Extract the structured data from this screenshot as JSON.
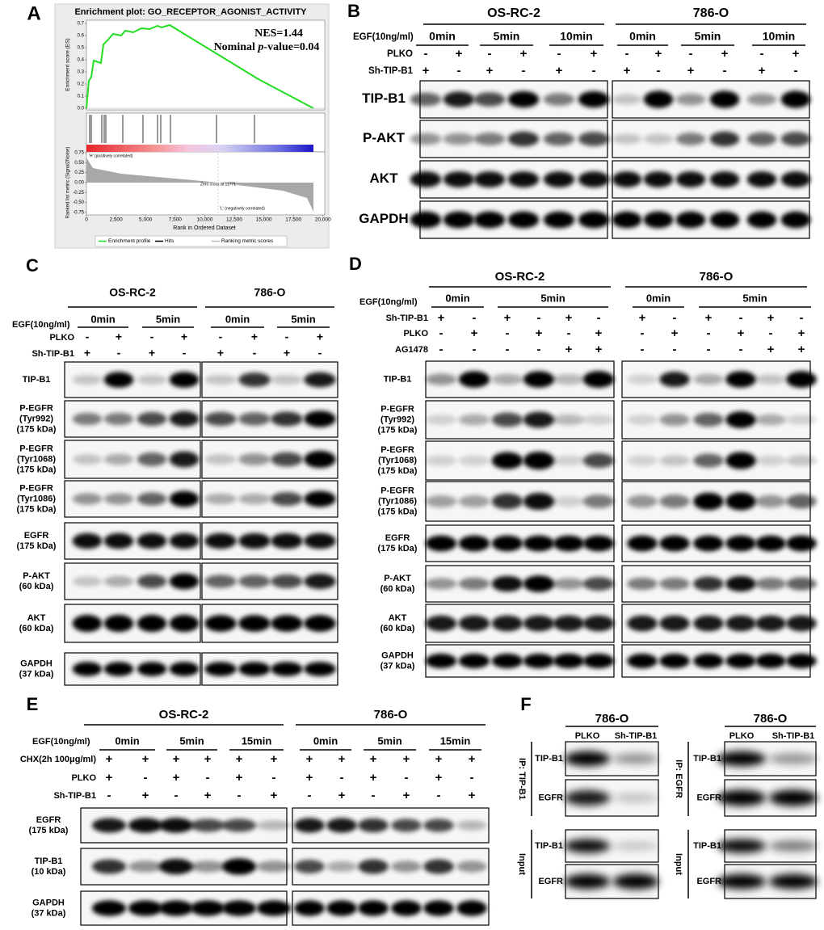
{
  "figure": {
    "panel_a": {
      "label": "A",
      "title": "Enrichment plot: GO_RECEPTOR_AGONIST_ACTIVITY",
      "nes": "NES=1.44",
      "pvalue": [
        "Nominal ",
        "p",
        "-value=0.04"
      ],
      "es_axis_label": "Enrichment score (ES)",
      "es_ticks": [
        "0.0",
        "0.1",
        "0.2",
        "0.3",
        "0.4",
        "0.5",
        "0.6",
        "0.7"
      ],
      "metric_axis_label": "Ranked list metric (Signal2Noise)",
      "metric_ticks": [
        "0.75",
        "0.50",
        "0.25",
        "0.00",
        "-0.25",
        "-0.50",
        "-0.75"
      ],
      "rank_ticks": [
        "0",
        "2,500",
        "5,000",
        "7,500",
        "10,000",
        "12,500",
        "15,000",
        "17,500",
        "20,000"
      ],
      "rank_axis_label": "Rank in Ordered Dataset",
      "positive_label": "'H' (positively correlated)",
      "zero_cross": "Zero cross at 11771",
      "negative_label": "'L' (negatively correlated)",
      "legend": [
        "Enrichment profile",
        "Hits",
        "Ranking metric scores"
      ]
    },
    "panel_b": {
      "label": "B",
      "cell_lines": [
        {
          "name": "OS-RC-2",
          "timepoints": [
            "0min",
            "5min",
            "10min"
          ]
        },
        {
          "name": "786-O",
          "timepoints": [
            "0min",
            "5min",
            "10min"
          ]
        }
      ],
      "treatment": "EGF(10ng/ml)",
      "conditions": [
        {
          "name": "PLKO",
          "signs": [
            "-",
            "+",
            "-",
            "+",
            "-",
            "+",
            "-",
            "+",
            "-",
            "+",
            "-",
            "+"
          ]
        },
        {
          "name": "Sh-TIP-B1",
          "signs": [
            "+",
            "-",
            "+",
            "-",
            "+",
            "-",
            "+",
            "-",
            "+",
            "-",
            "+",
            "-"
          ]
        }
      ],
      "blots": [
        [
          "TIP-B1"
        ],
        [
          "P-AKT"
        ],
        [
          "AKT"
        ],
        [
          "GAPDH"
        ]
      ]
    },
    "panel_c": {
      "label": "C",
      "cell_lines": [
        {
          "name": "OS-RC-2",
          "timepoints": [
            "0min",
            "5min"
          ]
        },
        {
          "name": "786-O",
          "timepoints": [
            "0min",
            "5min"
          ]
        }
      ],
      "treatment": "EGF(10ng/ml)",
      "conditions": [
        {
          "name": "PLKO",
          "signs": [
            "-",
            "+",
            "-",
            "+",
            "-",
            "+",
            "-",
            "+"
          ]
        },
        {
          "name": "Sh-TIP-B1",
          "signs": [
            "+",
            "-",
            "+",
            "-",
            "+",
            "-",
            "+",
            "-"
          ]
        }
      ],
      "blots": [
        [
          "TIP-B1"
        ],
        [
          "P-EGFR",
          "(Tyr992)",
          "(175 kDa)"
        ],
        [
          "P-EGFR",
          "(Tyr1068)",
          "(175 kDa)"
        ],
        [
          "P-EGFR",
          "(Tyr1086)",
          "(175 kDa)"
        ],
        [
          "EGFR",
          "(175 kDa)"
        ],
        [
          "P-AKT",
          "(60 kDa)"
        ],
        [
          "AKT",
          "(60 kDa)"
        ],
        [
          "GAPDH",
          "(37 kDa)"
        ]
      ]
    },
    "panel_d": {
      "label": "D",
      "cell_lines": [
        {
          "name": "OS-RC-2",
          "timepoints": [
            "0min",
            "5min"
          ]
        },
        {
          "name": "786-O",
          "timepoints": [
            "0min",
            "5min"
          ]
        }
      ],
      "treatment": "EGF(10ng/ml)",
      "conditions": [
        {
          "name": "Sh-TIP-B1",
          "signs": [
            "+",
            "-",
            "+",
            "-",
            "+",
            "-",
            "+",
            "-",
            "+",
            "-",
            "+",
            "-"
          ]
        },
        {
          "name": "PLKO",
          "signs": [
            "-",
            "+",
            "-",
            "+",
            "-",
            "+",
            "-",
            "+",
            "-",
            "+",
            "-",
            "+"
          ]
        },
        {
          "name": "AG1478",
          "signs": [
            "-",
            "-",
            "-",
            "-",
            "+",
            "+",
            "-",
            "-",
            "-",
            "-",
            "+",
            "+"
          ]
        }
      ],
      "blots": [
        [
          "TIP-B1"
        ],
        [
          "P-EGFR",
          "(Tyr992)",
          "(175 kDa)"
        ],
        [
          "P-EGFR",
          "(Tyr1068)",
          "(175 kDa)"
        ],
        [
          "P-EGFR",
          "(Tyr1086)",
          "(175 kDa)"
        ],
        [
          "EGFR",
          "(175 kDa)"
        ],
        [
          "P-AKT",
          "(60 kDa)"
        ],
        [
          "AKT",
          "(60 kDa)"
        ],
        [
          "GAPDH",
          "(37 kDa)"
        ]
      ]
    },
    "panel_e": {
      "label": "E",
      "cell_lines": [
        {
          "name": "OS-RC-2",
          "timepoints": [
            "0min",
            "5min",
            "15min"
          ]
        },
        {
          "name": "786-O",
          "timepoints": [
            "0min",
            "5min",
            "15min"
          ]
        }
      ],
      "treatment": "EGF(10ng/ml)",
      "conditions": [
        {
          "name": "CHX(2h 100μg/ml)",
          "signs": [
            "+",
            "+",
            "+",
            "+",
            "+",
            "+",
            "+",
            "+",
            "+",
            "+",
            "+",
            "+"
          ]
        },
        {
          "name": "PLKO",
          "signs": [
            "+",
            "-",
            "+",
            "-",
            "+",
            "-",
            "+",
            "-",
            "+",
            "-",
            "+",
            "-"
          ]
        },
        {
          "name": "Sh-TIP-B1",
          "signs": [
            "-",
            "+",
            "-",
            "+",
            "-",
            "+",
            "-",
            "+",
            "-",
            "+",
            "-",
            "+"
          ]
        }
      ],
      "blots": [
        [
          "EGFR",
          "(175 kDa)"
        ],
        [
          "TIP-B1",
          "(10 kDa)"
        ],
        [
          "GAPDH",
          "(37 kDa)"
        ]
      ]
    },
    "panel_f": {
      "label": "F",
      "subpanels": [
        {
          "cell_line": "786-O",
          "lanes": [
            "PLKO",
            "Sh-TIP-B1"
          ],
          "groups": [
            {
              "name": "IP: TIP-B1",
              "blots": [
                "TIP-B1",
                "EGFR"
              ]
            },
            {
              "name": "Input",
              "blots": [
                "TIP-B1",
                "EGFR"
              ]
            }
          ]
        },
        {
          "cell_line": "786-O",
          "lanes": [
            "PLKO",
            "Sh-TIP-B1"
          ],
          "groups": [
            {
              "name": "IP: EGFR",
              "blots": [
                "TIP-B1",
                "EGFR"
              ]
            },
            {
              "name": "Input",
              "blots": [
                "TIP-B1",
                "EGFR"
              ]
            }
          ]
        }
      ]
    }
  }
}
